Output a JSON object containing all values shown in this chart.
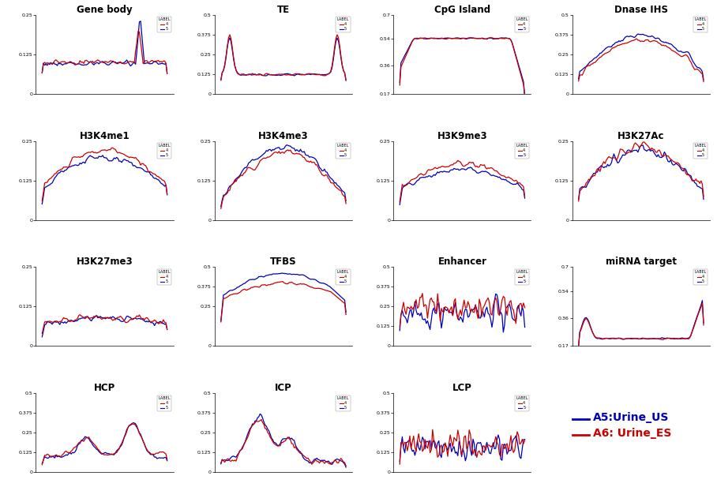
{
  "blue_color": "#0000bb",
  "red_color": "#cc0000",
  "bg_color": "#ffffff",
  "legend_title": "LABEL",
  "legend_blue": "5",
  "legend_red": "4",
  "label_a5": "A5:Urine_US",
  "label_a6": "A6: Urine_ES",
  "panels": [
    {
      "title": "Gene body",
      "ylim": [
        0,
        0.25
      ],
      "yticks": [
        0,
        0.125,
        0.25
      ]
    },
    {
      "title": "TE",
      "ylim": [
        0,
        0.5
      ],
      "yticks": [
        0,
        0.125,
        0.25,
        0.375,
        0.5
      ]
    },
    {
      "title": "CpG Island",
      "ylim": [
        0.17,
        0.7
      ],
      "yticks": [
        0.17,
        0.36,
        0.54,
        0.7
      ]
    },
    {
      "title": "Dnase IHS",
      "ylim": [
        0,
        0.5
      ],
      "yticks": [
        0,
        0.125,
        0.25,
        0.375,
        0.5
      ]
    },
    {
      "title": "H3K4me1",
      "ylim": [
        0,
        0.25
      ],
      "yticks": [
        0,
        0.125,
        0.25
      ]
    },
    {
      "title": "H3K4me3",
      "ylim": [
        0,
        0.25
      ],
      "yticks": [
        0,
        0.125,
        0.25
      ]
    },
    {
      "title": "H3K9me3",
      "ylim": [
        0,
        0.25
      ],
      "yticks": [
        0,
        0.125,
        0.25
      ]
    },
    {
      "title": "H3K27Ac",
      "ylim": [
        0,
        0.25
      ],
      "yticks": [
        0,
        0.125,
        0.25
      ]
    },
    {
      "title": "H3K27me3",
      "ylim": [
        0,
        0.25
      ],
      "yticks": [
        0,
        0.125,
        0.25
      ]
    },
    {
      "title": "TFBS",
      "ylim": [
        0,
        0.5
      ],
      "yticks": [
        0,
        0.25,
        0.375,
        0.5
      ]
    },
    {
      "title": "Enhancer",
      "ylim": [
        0,
        0.5
      ],
      "yticks": [
        0,
        0.125,
        0.25,
        0.375,
        0.5
      ]
    },
    {
      "title": "miRNA target",
      "ylim": [
        0.17,
        0.7
      ],
      "yticks": [
        0.17,
        0.36,
        0.54,
        0.7
      ]
    },
    {
      "title": "HCP",
      "ylim": [
        0,
        0.5
      ],
      "yticks": [
        0,
        0.125,
        0.25,
        0.375,
        0.5
      ]
    },
    {
      "title": "ICP",
      "ylim": [
        0,
        0.5
      ],
      "yticks": [
        0,
        0.125,
        0.25,
        0.375,
        0.5
      ]
    },
    {
      "title": "LCP",
      "ylim": [
        0,
        0.5
      ],
      "yticks": [
        0,
        0.125,
        0.25,
        0.375,
        0.5
      ]
    }
  ]
}
